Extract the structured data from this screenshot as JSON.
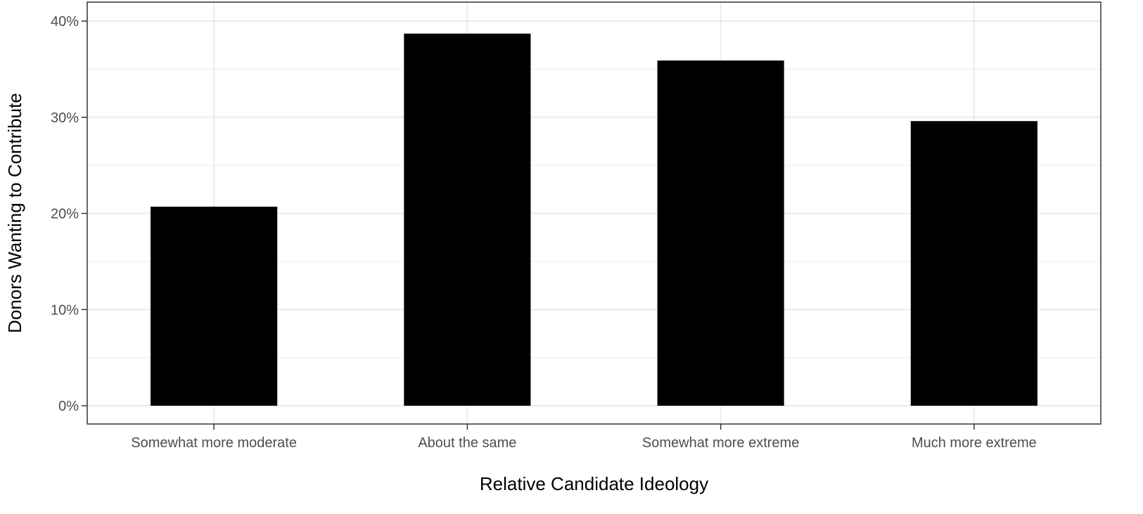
{
  "chart_data": {
    "type": "bar",
    "categories": [
      "Somewhat more moderate",
      "About the same",
      "Somewhat more extreme",
      "Much more extreme"
    ],
    "values": [
      0.207,
      0.387,
      0.359,
      0.296
    ],
    "xlabel": "Relative Candidate Ideology",
    "ylabel": "Donors Wanting to Contribute",
    "ylim": [
      0,
      0.42
    ],
    "yticks": [
      0,
      0.1,
      0.2,
      0.3,
      0.4
    ],
    "ytick_labels": [
      "0%",
      "10%",
      "20%",
      "30%",
      "40%"
    ],
    "grid": true,
    "legend": "none",
    "bar_color": "#000000",
    "grid_color": "#ebebeb",
    "panel_border_color": "#333333"
  }
}
